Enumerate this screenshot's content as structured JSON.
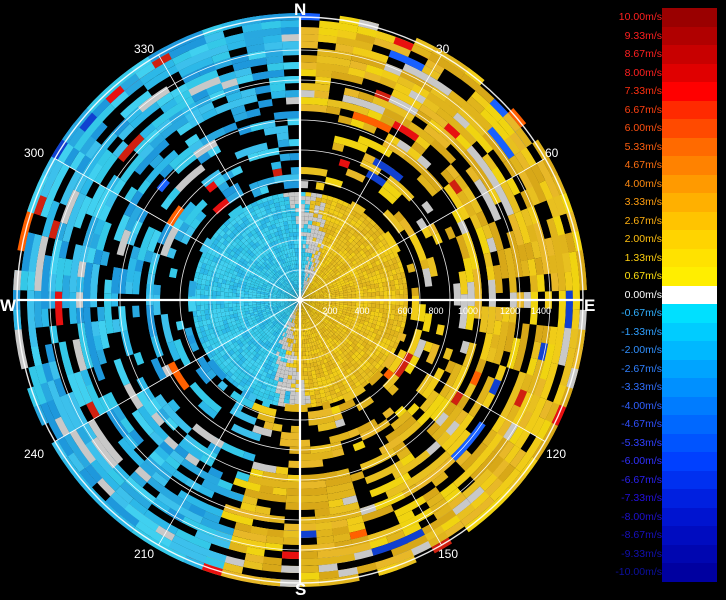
{
  "compass": {
    "north": "N",
    "east": "E",
    "south": "S",
    "west": "W"
  },
  "bearings": [
    "30",
    "60",
    "120",
    "150",
    "210",
    "240",
    "300",
    "330"
  ],
  "range_labels": [
    "200",
    "400",
    "600",
    "800",
    "1000",
    "1200",
    "1400"
  ],
  "legend": [
    {
      "label": "10.00m/s",
      "color": "#9a0000",
      "text_color": "#ff2020"
    },
    {
      "label": "9.33m/s",
      "color": "#b00000",
      "text_color": "#ff2020"
    },
    {
      "label": "8.67m/s",
      "color": "#c80000",
      "text_color": "#ff2020"
    },
    {
      "label": "8.00m/s",
      "color": "#e00000",
      "text_color": "#ff2020"
    },
    {
      "label": "7.33m/s",
      "color": "#ff0000",
      "text_color": "#ff3010"
    },
    {
      "label": "6.67m/s",
      "color": "#ff2a00",
      "text_color": "#ff4010"
    },
    {
      "label": "6.00m/s",
      "color": "#ff4a00",
      "text_color": "#ff5010"
    },
    {
      "label": "5.33m/s",
      "color": "#ff6a00",
      "text_color": "#ff6010"
    },
    {
      "label": "4.67m/s",
      "color": "#ff8200",
      "text_color": "#ff7010"
    },
    {
      "label": "4.00m/s",
      "color": "#ff9a00",
      "text_color": "#ff8a10"
    },
    {
      "label": "3.33m/s",
      "color": "#ffb000",
      "text_color": "#ff9e10"
    },
    {
      "label": "2.67m/s",
      "color": "#ffc400",
      "text_color": "#ffb010"
    },
    {
      "label": "2.00m/s",
      "color": "#ffd400",
      "text_color": "#ffc010"
    },
    {
      "label": "1.33m/s",
      "color": "#ffe200",
      "text_color": "#ffd010"
    },
    {
      "label": "0.67m/s",
      "color": "#ffee00",
      "text_color": "#ffe010"
    },
    {
      "label": "0.00m/s",
      "color": "#ffffff",
      "text_color": "#ffffff"
    },
    {
      "label": "-0.67m/s",
      "color": "#00e0ff",
      "text_color": "#30b0ff"
    },
    {
      "label": "-1.33m/s",
      "color": "#00ccff",
      "text_color": "#30a0ff"
    },
    {
      "label": "-2.00m/s",
      "color": "#00b8ff",
      "text_color": "#3090ff"
    },
    {
      "label": "-2.67m/s",
      "color": "#00a4ff",
      "text_color": "#3080ff"
    },
    {
      "label": "-3.33m/s",
      "color": "#0090ff",
      "text_color": "#3070ff"
    },
    {
      "label": "-4.00m/s",
      "color": "#007cff",
      "text_color": "#3060ff"
    },
    {
      "label": "-4.67m/s",
      "color": "#0068ff",
      "text_color": "#3050ff"
    },
    {
      "label": "-5.33m/s",
      "color": "#0054ff",
      "text_color": "#3040ff"
    },
    {
      "label": "-6.00m/s",
      "color": "#0040ff",
      "text_color": "#3030ff"
    },
    {
      "label": "-6.67m/s",
      "color": "#0030f0",
      "text_color": "#2a20f0"
    },
    {
      "label": "-7.33m/s",
      "color": "#0020e0",
      "text_color": "#2410e0"
    },
    {
      "label": "-8.00m/s",
      "color": "#0014d0",
      "text_color": "#1e10d0"
    },
    {
      "label": "-8.67m/s",
      "color": "#000cc0",
      "text_color": "#1810c0"
    },
    {
      "label": "-9.33m/s",
      "color": "#0006b0",
      "text_color": "#1210b0"
    },
    {
      "label": "-10.00m/s",
      "color": "#0000a0",
      "text_color": "#0c10a0"
    }
  ],
  "colors": {
    "background": "#000000",
    "grid": "#ffffff",
    "no_data": "#000000",
    "zero_band": "#c8c8c8",
    "approaching_cyan": "#34c8e8",
    "receding_yellow": "#e8c020"
  }
}
